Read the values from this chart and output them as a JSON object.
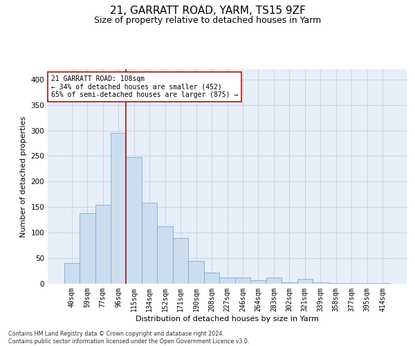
{
  "title_line1": "21, GARRATT ROAD, YARM, TS15 9ZF",
  "title_line2": "Size of property relative to detached houses in Yarm",
  "xlabel": "Distribution of detached houses by size in Yarm",
  "ylabel": "Number of detached properties",
  "footnote": "Contains HM Land Registry data © Crown copyright and database right 2024.\nContains public sector information licensed under the Open Government Licence v3.0.",
  "bar_labels": [
    "40sqm",
    "59sqm",
    "77sqm",
    "96sqm",
    "115sqm",
    "134sqm",
    "152sqm",
    "171sqm",
    "190sqm",
    "208sqm",
    "227sqm",
    "246sqm",
    "264sqm",
    "283sqm",
    "302sqm",
    "321sqm",
    "339sqm",
    "358sqm",
    "377sqm",
    "395sqm",
    "414sqm"
  ],
  "bar_values": [
    40,
    138,
    155,
    295,
    248,
    158,
    113,
    90,
    45,
    22,
    12,
    12,
    7,
    12,
    3,
    10,
    3,
    2,
    1,
    1,
    1
  ],
  "bar_color": "#ccddf0",
  "bar_edge_color": "#7aadd4",
  "grid_color": "#c8d4e3",
  "annotation_line_color": "#aa1111",
  "annotation_box_text": "21 GARRATT ROAD: 108sqm\n← 34% of detached houses are smaller (452)\n65% of semi-detached houses are larger (875) →",
  "ylim": [
    0,
    420
  ],
  "yticks": [
    0,
    50,
    100,
    150,
    200,
    250,
    300,
    350,
    400
  ],
  "background_color": "#e8eef8",
  "title_fontsize": 11,
  "subtitle_fontsize": 9,
  "annotation_fontsize": 7,
  "axis_label_fontsize": 8,
  "property_bar_idx": 3
}
